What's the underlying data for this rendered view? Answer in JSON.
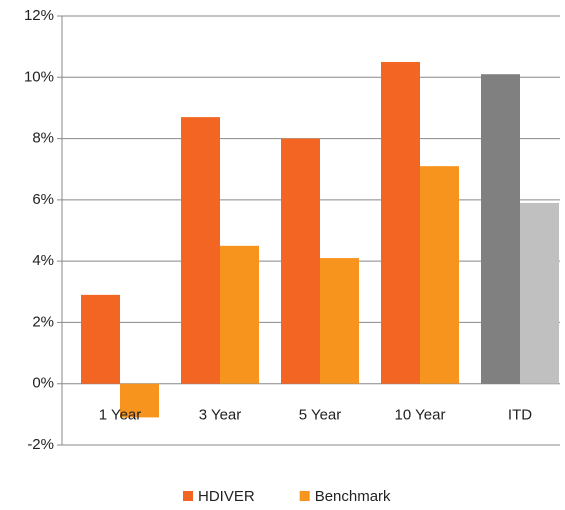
{
  "chart_data": {
    "type": "bar",
    "categories": [
      "1 Year",
      "3 Year",
      "5 Year",
      "10 Year",
      "ITD"
    ],
    "series": [
      {
        "name": "HDIVER",
        "color": "#f26522",
        "values": [
          2.9,
          8.7,
          8.0,
          10.5,
          10.1
        ],
        "colors": [
          "#f26522",
          "#f26522",
          "#f26522",
          "#f26522",
          "#808080"
        ]
      },
      {
        "name": "Benchmark",
        "color": "#f7941d",
        "values": [
          -1.1,
          4.5,
          4.1,
          7.1,
          5.9
        ],
        "colors": [
          "#f7941d",
          "#f7941d",
          "#f7941d",
          "#f7941d",
          "#c0c0c0"
        ]
      }
    ],
    "ylim": [
      -2,
      12
    ],
    "yticks": [
      {
        "value": -2,
        "label": "-2%"
      },
      {
        "value": 0,
        "label": "0%"
      },
      {
        "value": 2,
        "label": "2%"
      },
      {
        "value": 4,
        "label": "4%"
      },
      {
        "value": 6,
        "label": "6%"
      },
      {
        "value": 8,
        "label": "8%"
      },
      {
        "value": 10,
        "label": "10%"
      },
      {
        "value": 12,
        "label": "12%"
      }
    ],
    "grid": true,
    "legend": "bottom"
  }
}
